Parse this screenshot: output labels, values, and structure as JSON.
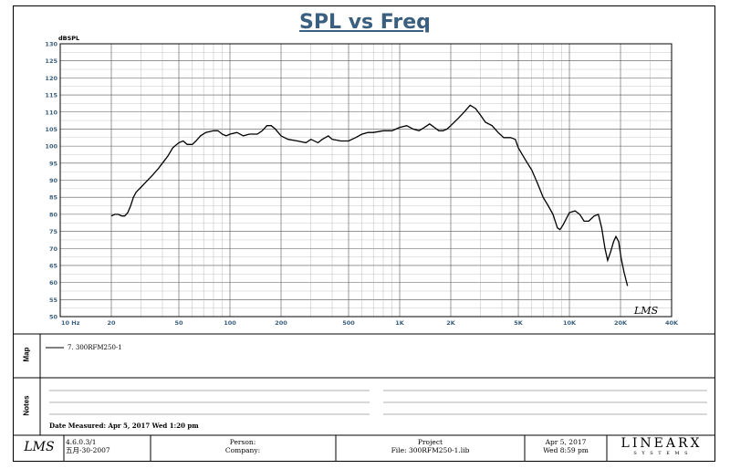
{
  "chart_data": {
    "type": "line",
    "title": "SPL vs Freq",
    "ylabel": "dBSPL",
    "y_ticks": [
      "130",
      "125",
      "120",
      "115",
      "110",
      "105",
      "100",
      "95",
      "90",
      "85",
      "80",
      "75",
      "70",
      "65",
      "60",
      "55",
      "50"
    ],
    "ylim": [
      50,
      130
    ],
    "x_tick_labels": [
      {
        "f": 10,
        "label": "10 Hz"
      },
      {
        "f": 20,
        "label": "20"
      },
      {
        "f": 50,
        "label": "50"
      },
      {
        "f": 100,
        "label": "100"
      },
      {
        "f": 200,
        "label": "200"
      },
      {
        "f": 500,
        "label": "500"
      },
      {
        "f": 1000,
        "label": "1K"
      },
      {
        "f": 2000,
        "label": "2K"
      },
      {
        "f": 5000,
        "label": "5K"
      },
      {
        "f": 10000,
        "label": "10K"
      },
      {
        "f": 20000,
        "label": "20K"
      },
      {
        "f": 40000,
        "label": "40K"
      }
    ],
    "xlim": [
      10,
      40000
    ],
    "x_scale": "log",
    "grid": true,
    "series": [
      {
        "name": "7. 300RFM250-1",
        "color": "#000000",
        "points": [
          [
            20,
            79.5
          ],
          [
            21,
            80
          ],
          [
            22,
            80
          ],
          [
            23,
            79.5
          ],
          [
            24,
            79.5
          ],
          [
            25,
            80.5
          ],
          [
            26,
            82.5
          ],
          [
            27,
            85
          ],
          [
            28,
            86.5
          ],
          [
            30,
            88
          ],
          [
            32,
            89.5
          ],
          [
            35,
            91.5
          ],
          [
            38,
            93.5
          ],
          [
            40,
            95
          ],
          [
            43,
            97
          ],
          [
            46,
            99.5
          ],
          [
            50,
            101
          ],
          [
            53,
            101.5
          ],
          [
            56,
            100.5
          ],
          [
            60,
            100.5
          ],
          [
            63,
            101.5
          ],
          [
            67,
            103
          ],
          [
            72,
            104
          ],
          [
            80,
            104.5
          ],
          [
            85,
            104.5
          ],
          [
            90,
            103.5
          ],
          [
            95,
            103
          ],
          [
            100,
            103.5
          ],
          [
            110,
            104
          ],
          [
            120,
            103
          ],
          [
            130,
            103.5
          ],
          [
            145,
            103.5
          ],
          [
            155,
            104.5
          ],
          [
            165,
            106
          ],
          [
            175,
            106
          ],
          [
            185,
            105
          ],
          [
            200,
            103
          ],
          [
            220,
            102
          ],
          [
            250,
            101.5
          ],
          [
            280,
            101
          ],
          [
            300,
            102
          ],
          [
            330,
            101
          ],
          [
            350,
            102
          ],
          [
            380,
            103
          ],
          [
            400,
            102
          ],
          [
            450,
            101.5
          ],
          [
            500,
            101.5
          ],
          [
            550,
            102.5
          ],
          [
            600,
            103.5
          ],
          [
            650,
            104
          ],
          [
            700,
            104
          ],
          [
            800,
            104.5
          ],
          [
            900,
            104.5
          ],
          [
            1000,
            105.5
          ],
          [
            1100,
            106
          ],
          [
            1200,
            105
          ],
          [
            1300,
            104.5
          ],
          [
            1400,
            105.5
          ],
          [
            1500,
            106.5
          ],
          [
            1600,
            105.5
          ],
          [
            1700,
            104.5
          ],
          [
            1800,
            104.5
          ],
          [
            1900,
            105
          ],
          [
            2000,
            106
          ],
          [
            2200,
            108
          ],
          [
            2400,
            110
          ],
          [
            2600,
            112
          ],
          [
            2800,
            111
          ],
          [
            3000,
            109
          ],
          [
            3200,
            107
          ],
          [
            3500,
            106
          ],
          [
            3800,
            104
          ],
          [
            4100,
            102.5
          ],
          [
            4500,
            102.5
          ],
          [
            4800,
            102
          ],
          [
            5000,
            99.5
          ],
          [
            5500,
            96
          ],
          [
            6000,
            93
          ],
          [
            6500,
            89
          ],
          [
            7000,
            85
          ],
          [
            7500,
            82.5
          ],
          [
            8000,
            80
          ],
          [
            8500,
            76
          ],
          [
            8800,
            75.5
          ],
          [
            9200,
            77
          ],
          [
            10000,
            80.5
          ],
          [
            10800,
            81
          ],
          [
            11500,
            80
          ],
          [
            12200,
            78
          ],
          [
            13000,
            78
          ],
          [
            14000,
            79.5
          ],
          [
            14800,
            80
          ],
          [
            15500,
            76
          ],
          [
            16200,
            70
          ],
          [
            16800,
            66.5
          ],
          [
            17500,
            69
          ],
          [
            18200,
            72
          ],
          [
            18800,
            73.5
          ],
          [
            19500,
            72
          ],
          [
            20200,
            67
          ],
          [
            21000,
            63
          ],
          [
            22000,
            59
          ]
        ]
      }
    ]
  },
  "legend_entry": "7. 300RFM250-1",
  "watermark": "LMS",
  "side_labels": {
    "map": "Map",
    "notes": "Notes"
  },
  "notes": {
    "date_measured": "Date Measured: Apr 5, 2017  Wed  1:20 pm"
  },
  "footer": {
    "logo": "LMS",
    "version": "4.6.0.3/1",
    "version_date": "五月-30-2007",
    "person_label": "Person:",
    "company_label": "Company:",
    "project_label": "Project",
    "file_label": "File: 300RFM250-1.lib",
    "date": "Apr 5, 2017",
    "time": "Wed  8:59 pm",
    "brand": "LINEARX",
    "brand_sub": "S Y S T E M S"
  }
}
